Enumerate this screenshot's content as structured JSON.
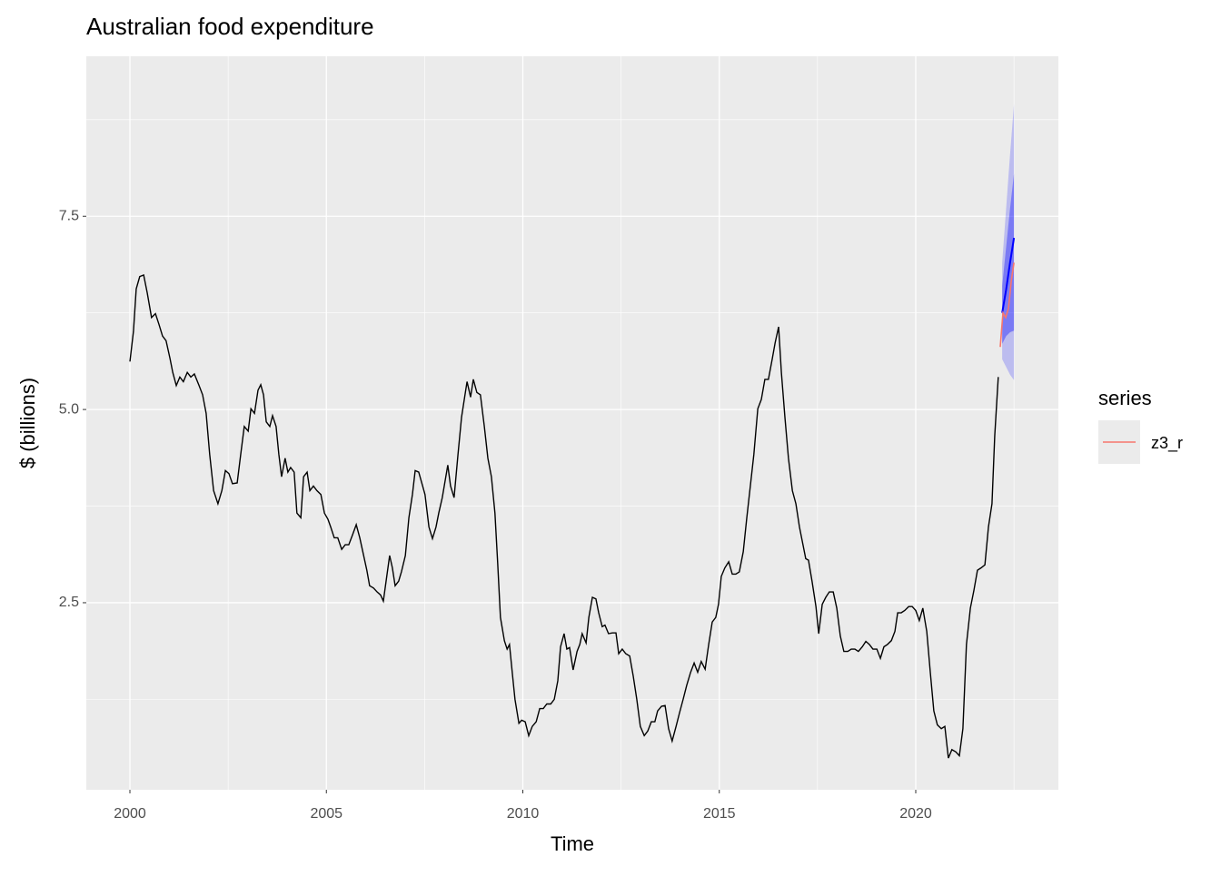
{
  "chart_data": {
    "type": "line",
    "title": "Australian food expenditure",
    "x_label": "Time",
    "y_label": "$ (billions)",
    "legend_title": "series",
    "legend_position": "right",
    "grid": true,
    "xlim": [
      1998.89,
      2023.63
    ],
    "ylim": [
      0.08,
      9.57
    ],
    "xticks": [
      2000,
      2005,
      2010,
      2015,
      2020
    ],
    "yticks": [
      2.5,
      {
        "value": 5,
        "label": "5.0"
      },
      7.5
    ],
    "actual": {
      "color": "#000000",
      "x": [
        2000.0,
        2000.09,
        2000.16,
        2000.25,
        2000.35,
        2000.44,
        2000.55,
        2000.65,
        2000.74,
        2000.83,
        2000.92,
        2001.02,
        2001.09,
        2001.18,
        2001.27,
        2001.36,
        2001.46,
        2001.55,
        2001.64,
        2001.76,
        2001.85,
        2001.94,
        2002.03,
        2002.13,
        2002.24,
        2002.34,
        2002.43,
        2002.52,
        2002.61,
        2002.73,
        2002.82,
        2002.91,
        2003.01,
        2003.08,
        2003.17,
        2003.26,
        2003.33,
        2003.4,
        2003.47,
        2003.56,
        2003.63,
        2003.72,
        2003.79,
        2003.86,
        2003.95,
        2004.02,
        2004.09,
        2004.18,
        2004.25,
        2004.35,
        2004.42,
        2004.51,
        2004.58,
        2004.67,
        2004.76,
        2004.86,
        2004.95,
        2005.04,
        2005.11,
        2005.2,
        2005.29,
        2005.39,
        2005.48,
        2005.57,
        2005.66,
        2005.76,
        2005.85,
        2005.94,
        2006.03,
        2006.1,
        2006.2,
        2006.29,
        2006.38,
        2006.45,
        2006.52,
        2006.61,
        2006.68,
        2006.75,
        2006.84,
        2006.91,
        2007.01,
        2007.1,
        2007.19,
        2007.26,
        2007.35,
        2007.45,
        2007.51,
        2007.61,
        2007.7,
        2007.79,
        2007.86,
        2007.95,
        2008.02,
        2008.09,
        2008.16,
        2008.25,
        2008.35,
        2008.44,
        2008.51,
        2008.58,
        2008.67,
        2008.74,
        2008.83,
        2008.92,
        2009.02,
        2009.11,
        2009.2,
        2009.29,
        2009.36,
        2009.43,
        2009.53,
        2009.6,
        2009.66,
        2009.73,
        2009.8,
        2009.9,
        2009.97,
        2010.06,
        2010.15,
        2010.24,
        2010.34,
        2010.43,
        2010.52,
        2010.61,
        2010.71,
        2010.8,
        2010.89,
        2010.96,
        2011.05,
        2011.12,
        2011.19,
        2011.28,
        2011.38,
        2011.45,
        2011.51,
        2011.61,
        2011.68,
        2011.77,
        2011.86,
        2011.93,
        2012.02,
        2012.09,
        2012.18,
        2012.28,
        2012.37,
        2012.44,
        2012.53,
        2012.62,
        2012.72,
        2012.81,
        2012.9,
        2012.99,
        2013.09,
        2013.18,
        2013.27,
        2013.36,
        2013.43,
        2013.53,
        2013.62,
        2013.71,
        2013.8,
        2013.9,
        2013.99,
        2014.08,
        2014.17,
        2014.27,
        2014.36,
        2014.45,
        2014.54,
        2014.64,
        2014.73,
        2014.82,
        2014.91,
        2014.98,
        2015.05,
        2015.14,
        2015.24,
        2015.33,
        2015.42,
        2015.51,
        2015.61,
        2015.7,
        2015.79,
        2015.88,
        2015.98,
        2016.07,
        2016.16,
        2016.25,
        2016.35,
        2016.42,
        2016.51,
        2016.58,
        2016.67,
        2016.76,
        2016.86,
        2016.95,
        2017.04,
        2017.13,
        2017.2,
        2017.27,
        2017.36,
        2017.46,
        2017.53,
        2017.62,
        2017.71,
        2017.8,
        2017.9,
        2017.99,
        2018.08,
        2018.17,
        2018.27,
        2018.36,
        2018.45,
        2018.54,
        2018.64,
        2018.73,
        2018.82,
        2018.91,
        2019.01,
        2019.1,
        2019.19,
        2019.28,
        2019.38,
        2019.47,
        2019.54,
        2019.63,
        2019.72,
        2019.82,
        2019.91,
        2020.0,
        2020.09,
        2020.18,
        2020.28,
        2020.37,
        2020.46,
        2020.55,
        2020.65,
        2020.74,
        2020.83,
        2020.92,
        2021.02,
        2021.11,
        2021.2,
        2021.29,
        2021.39,
        2021.48,
        2021.57,
        2021.66,
        2021.76,
        2021.85,
        2021.94,
        2022.01,
        2022.1
      ],
      "values": [
        5.62,
        6.01,
        6.56,
        6.72,
        6.74,
        6.51,
        6.19,
        6.24,
        6.1,
        5.95,
        5.89,
        5.66,
        5.48,
        5.31,
        5.42,
        5.36,
        5.48,
        5.42,
        5.46,
        5.31,
        5.19,
        4.95,
        4.42,
        3.95,
        3.78,
        3.95,
        4.21,
        4.17,
        4.04,
        4.05,
        4.42,
        4.78,
        4.72,
        5.01,
        4.95,
        5.25,
        5.32,
        5.19,
        4.84,
        4.78,
        4.92,
        4.78,
        4.42,
        4.13,
        4.37,
        4.19,
        4.25,
        4.19,
        3.66,
        3.6,
        4.13,
        4.19,
        3.95,
        4.01,
        3.95,
        3.9,
        3.66,
        3.58,
        3.48,
        3.34,
        3.34,
        3.19,
        3.25,
        3.25,
        3.37,
        3.51,
        3.34,
        3.13,
        2.92,
        2.72,
        2.69,
        2.64,
        2.6,
        2.52,
        2.78,
        3.11,
        2.95,
        2.72,
        2.78,
        2.9,
        3.11,
        3.6,
        3.9,
        4.21,
        4.19,
        4.01,
        3.9,
        3.48,
        3.33,
        3.48,
        3.66,
        3.86,
        4.07,
        4.28,
        4.01,
        3.86,
        4.42,
        4.9,
        5.13,
        5.36,
        5.16,
        5.39,
        5.22,
        5.19,
        4.78,
        4.37,
        4.13,
        3.66,
        3.01,
        2.31,
        2.01,
        1.9,
        1.96,
        1.6,
        1.25,
        0.94,
        0.98,
        0.96,
        0.78,
        0.9,
        0.96,
        1.13,
        1.13,
        1.19,
        1.19,
        1.25,
        1.49,
        1.93,
        2.1,
        1.9,
        1.92,
        1.63,
        1.87,
        1.96,
        2.1,
        1.98,
        2.31,
        2.57,
        2.55,
        2.37,
        2.19,
        2.21,
        2.1,
        2.11,
        2.11,
        1.84,
        1.9,
        1.84,
        1.81,
        1.55,
        1.25,
        0.9,
        0.78,
        0.84,
        0.96,
        0.96,
        1.1,
        1.16,
        1.17,
        0.87,
        0.71,
        0.9,
        1.08,
        1.25,
        1.43,
        1.6,
        1.72,
        1.6,
        1.74,
        1.64,
        1.96,
        2.25,
        2.31,
        2.48,
        2.84,
        2.95,
        3.03,
        2.87,
        2.87,
        2.9,
        3.16,
        3.6,
        4.01,
        4.42,
        5.01,
        5.13,
        5.39,
        5.39,
        5.66,
        5.86,
        6.07,
        5.48,
        4.9,
        4.37,
        3.95,
        3.78,
        3.48,
        3.25,
        3.07,
        3.05,
        2.78,
        2.45,
        2.1,
        2.48,
        2.57,
        2.64,
        2.64,
        2.43,
        2.07,
        1.87,
        1.87,
        1.9,
        1.9,
        1.87,
        1.93,
        2.0,
        1.96,
        1.9,
        1.9,
        1.78,
        1.93,
        1.96,
        2.01,
        2.13,
        2.37,
        2.37,
        2.4,
        2.45,
        2.45,
        2.4,
        2.27,
        2.43,
        2.13,
        1.6,
        1.1,
        0.92,
        0.87,
        0.9,
        0.49,
        0.6,
        0.57,
        0.52,
        0.87,
        1.96,
        2.43,
        2.66,
        2.92,
        2.95,
        2.99,
        3.48,
        3.78,
        4.66,
        5.42
      ]
    },
    "forecast": {
      "color": "#0000ff",
      "band_color": "#0000ff",
      "x": [
        2022.2,
        2022.3,
        2022.4,
        2022.5
      ],
      "values": [
        6.25,
        6.55,
        6.9,
        7.22
      ],
      "lo80": [
        5.85,
        5.95,
        6.0,
        6.02
      ],
      "hi80": [
        6.6,
        7.1,
        7.6,
        8.05
      ],
      "lo95": [
        5.65,
        5.55,
        5.45,
        5.38
      ],
      "hi95": [
        6.9,
        7.6,
        8.3,
        8.95
      ]
    },
    "series": [
      {
        "name": "z3_r",
        "color": "#f8766d",
        "x": [
          2022.15,
          2022.22,
          2022.29,
          2022.36,
          2022.43,
          2022.5
        ],
        "values": [
          5.81,
          6.25,
          6.19,
          6.31,
          6.66,
          6.9
        ]
      }
    ]
  }
}
